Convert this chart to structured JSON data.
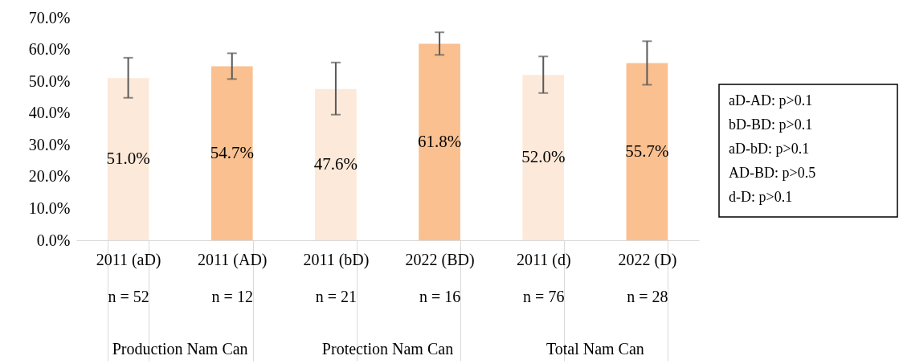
{
  "chart_data": {
    "type": "bar",
    "categories": [
      "2011 (aD)\nn = 52",
      "2011 (AD)\nn = 12",
      "2011 (bD)\nn = 21",
      "2022 (BD)\nn = 16",
      "2011 (d)\nn = 76",
      "2022 (D)\nn = 28"
    ],
    "values": [
      51.0,
      54.7,
      47.6,
      61.8,
      52.0,
      55.7
    ],
    "value_labels": [
      "51.0%",
      "54.7%",
      "47.6%",
      "61.8%",
      "52.0%",
      "55.7%"
    ],
    "colors": [
      "#fde9d9",
      "#fac090",
      "#fde9d9",
      "#fac090",
      "#fde9d9",
      "#fac090"
    ],
    "errors": [
      [
        44.8,
        57.4
      ],
      [
        50.7,
        58.8
      ],
      [
        39.5,
        55.9
      ],
      [
        58.3,
        65.4
      ],
      [
        46.3,
        57.8
      ],
      [
        48.9,
        62.6
      ]
    ],
    "ylim": [
      0,
      70
    ],
    "yticks": [
      {
        "value": 0,
        "label": "0.0%"
      },
      {
        "value": 10,
        "label": "10.0%"
      },
      {
        "value": 20,
        "label": "20.0%"
      },
      {
        "value": 30,
        "label": "30.0%"
      },
      {
        "value": 40,
        "label": "40.0%"
      },
      {
        "value": 50,
        "label": "50.0%"
      },
      {
        "value": 60,
        "label": "60.0%"
      },
      {
        "value": 70,
        "label": "70.0%"
      }
    ],
    "grid": false,
    "annotations": [
      "Production Nam Can",
      "Protection Nam Can",
      "Total Nam Can",
      "aD-AD: p>0.1\nbD-BD: p>0.1\naD-bD: p>0.1\nAD-BD: p>0.5\nd-D: p>0.1"
    ]
  }
}
